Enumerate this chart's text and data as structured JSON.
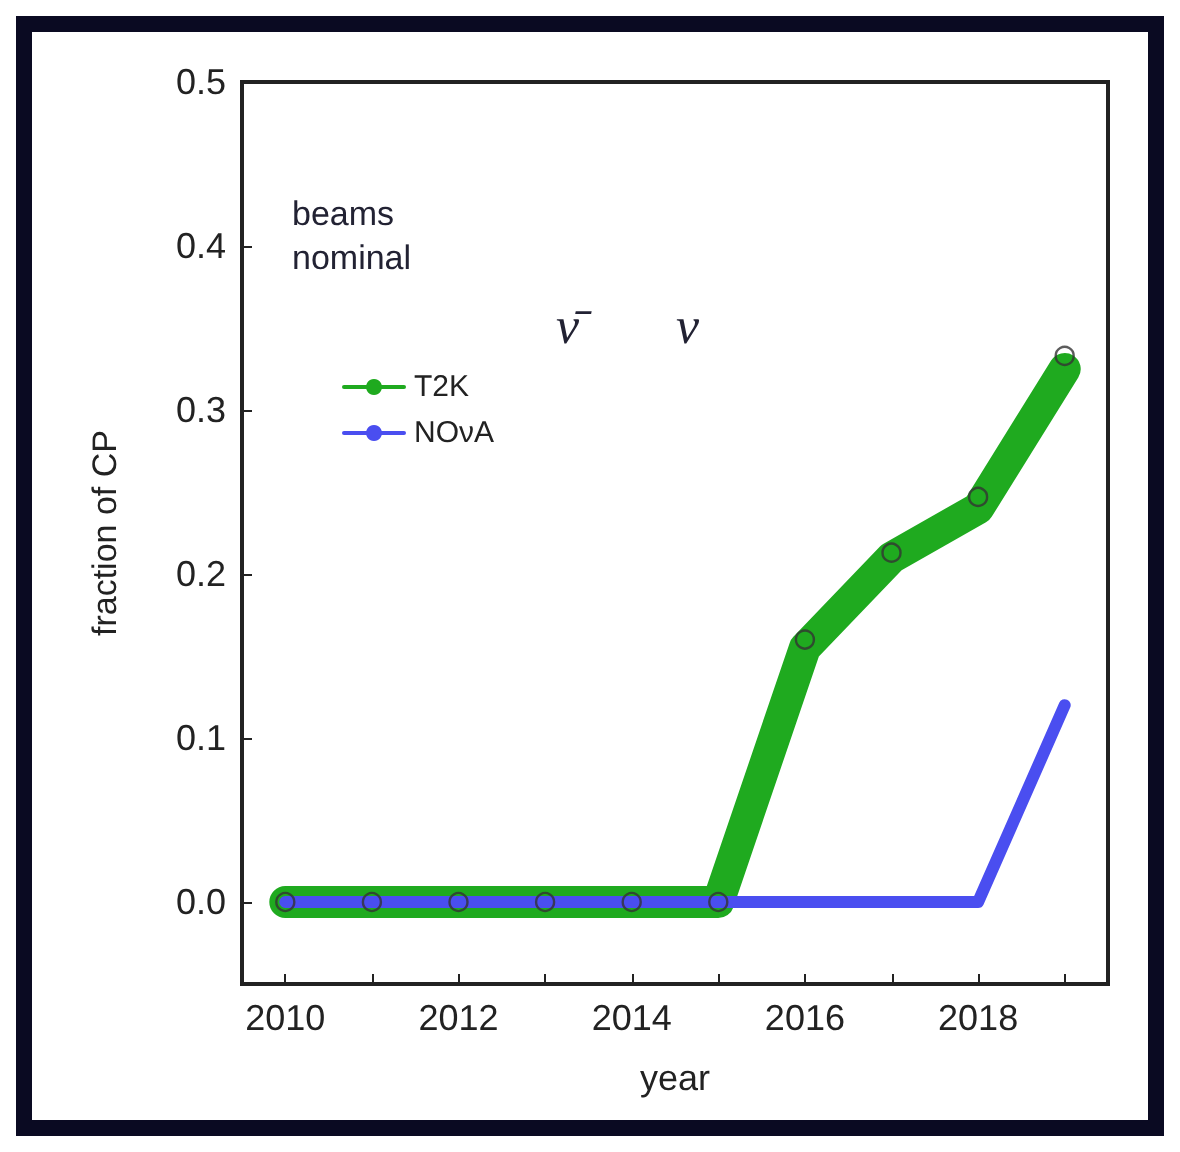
{
  "chart_data": {
    "type": "line",
    "xlabel": "year",
    "ylabel": "fraction of CP",
    "x": [
      2010,
      2011,
      2012,
      2013,
      2014,
      2015,
      2016,
      2017,
      2018,
      2019
    ],
    "series": [
      {
        "name": "T2K",
        "color": "#1faa1f",
        "values": [
          0,
          0,
          0,
          0,
          0,
          0,
          0.155,
          0.21,
          0.24,
          0.325
        ]
      },
      {
        "name": "NOνA",
        "color": "#4a4ef0",
        "values": [
          0,
          0,
          0,
          0,
          0,
          0,
          0,
          0,
          0,
          0.12
        ]
      },
      {
        "type": "scatter",
        "color": "#333333",
        "marker": "circle",
        "values": [
          0,
          0,
          0,
          0,
          0,
          0,
          0.16,
          0.213,
          0.247,
          0.333
        ]
      }
    ],
    "xlim": [
      2009.5,
      2019.5
    ],
    "xticks": [
      2010,
      {
        "value": 2011,
        "label": null
      },
      2012,
      {
        "value": 2013,
        "label": null
      },
      2014,
      {
        "value": 2015,
        "label": null
      },
      2016,
      {
        "value": 2017,
        "label": null
      },
      2018,
      {
        "value": 2019,
        "label": null
      }
    ],
    "ylim": [
      -0.05,
      0.5
    ],
    "yticks": [
      {
        "value": 0,
        "label": "0.0"
      },
      {
        "value": 0.1,
        "label": "0.1"
      },
      {
        "value": 0.2,
        "label": "0.2"
      },
      {
        "value": 0.3,
        "label": "0.3"
      },
      {
        "value": 0.4,
        "label": "0.4"
      },
      {
        "value": 0.5,
        "label": "0.5"
      }
    ],
    "legend": "top left",
    "grid": false,
    "line_style": "solid",
    "annotations": [
      "beams\nnominal",
      "ν̄",
      "ν"
    ]
  }
}
